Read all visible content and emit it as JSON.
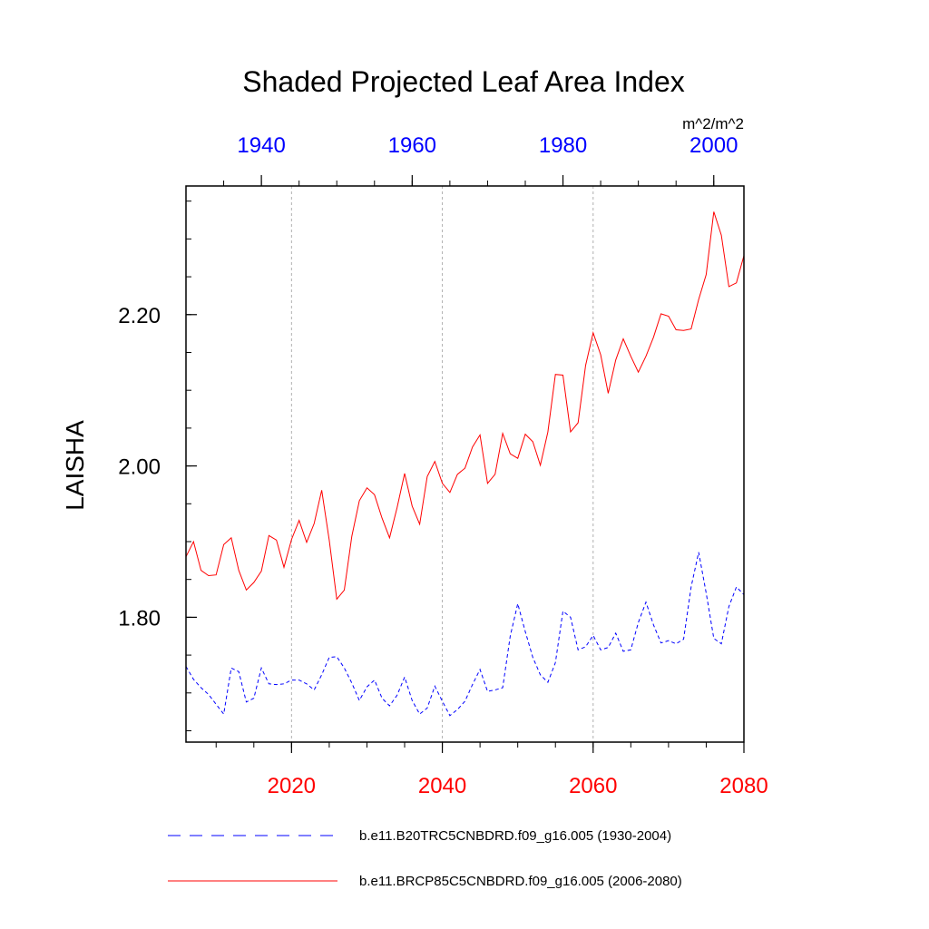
{
  "chart_data": {
    "type": "line",
    "title": "Shaded Projected Leaf Area Index",
    "units": "m^2/m^2",
    "ylabel": "LAISHA",
    "ylim": [
      1.635,
      2.37
    ],
    "yticks": [
      1.8,
      2.0,
      2.2
    ],
    "ytick_labels": [
      "1.80",
      "2.00",
      "2.20"
    ],
    "grid": "dotted vertical lines at major bottom-axis ticks",
    "bottom_axis": {
      "color": "#ff0000",
      "range": [
        2006,
        2080
      ],
      "ticks": [
        2020,
        2040,
        2060,
        2080
      ],
      "tick_labels": [
        "2020",
        "2040",
        "2060",
        "2080"
      ]
    },
    "top_axis": {
      "color": "#0000ff",
      "range": [
        1930,
        2004
      ],
      "ticks": [
        1940,
        1960,
        1980,
        2000
      ],
      "tick_labels": [
        "1940",
        "1960",
        "1980",
        "2000"
      ]
    },
    "series": [
      {
        "name": "b.e11.B20TRC5CNBDRD.f09_g16.005 (1930-2004)",
        "color": "#0000ff",
        "style": "dashed",
        "x": [
          1930,
          1931,
          1932,
          1933,
          1934,
          1935,
          1936,
          1937,
          1938,
          1939,
          1940,
          1941,
          1942,
          1943,
          1944,
          1945,
          1946,
          1947,
          1948,
          1949,
          1950,
          1951,
          1952,
          1953,
          1954,
          1955,
          1956,
          1957,
          1958,
          1959,
          1960,
          1961,
          1962,
          1963,
          1964,
          1965,
          1966,
          1967,
          1968,
          1969,
          1970,
          1971,
          1972,
          1973,
          1974,
          1975,
          1976,
          1977,
          1978,
          1979,
          1980,
          1981,
          1982,
          1983,
          1984,
          1985,
          1986,
          1987,
          1988,
          1989,
          1990,
          1991,
          1992,
          1993,
          1994,
          1995,
          1996,
          1997,
          1998,
          1999,
          2000,
          2001,
          2002,
          2003,
          2004
        ],
        "values": [
          1.735,
          1.718,
          1.707,
          1.698,
          1.685,
          1.672,
          1.733,
          1.728,
          1.688,
          1.693,
          1.733,
          1.712,
          1.711,
          1.712,
          1.717,
          1.717,
          1.712,
          1.704,
          1.724,
          1.747,
          1.748,
          1.733,
          1.713,
          1.69,
          1.708,
          1.717,
          1.693,
          1.683,
          1.697,
          1.721,
          1.69,
          1.672,
          1.68,
          1.709,
          1.689,
          1.67,
          1.678,
          1.689,
          1.711,
          1.731,
          1.702,
          1.704,
          1.707,
          1.775,
          1.818,
          1.781,
          1.747,
          1.724,
          1.714,
          1.74,
          1.808,
          1.8,
          1.757,
          1.761,
          1.776,
          1.757,
          1.76,
          1.779,
          1.755,
          1.757,
          1.793,
          1.82,
          1.79,
          1.766,
          1.769,
          1.765,
          1.771,
          1.84,
          1.886,
          1.832,
          1.772,
          1.765,
          1.814,
          1.84,
          1.83
        ]
      },
      {
        "name": "b.e11.BRCP85C5CNBDRD.f09_g16.005 (2006-2080)",
        "color": "#ff0000",
        "style": "solid",
        "x": [
          2006,
          2007,
          2008,
          2009,
          2010,
          2011,
          2012,
          2013,
          2014,
          2015,
          2016,
          2017,
          2018,
          2019,
          2020,
          2021,
          2022,
          2023,
          2024,
          2025,
          2026,
          2027,
          2028,
          2029,
          2030,
          2031,
          2032,
          2033,
          2034,
          2035,
          2036,
          2037,
          2038,
          2039,
          2040,
          2041,
          2042,
          2043,
          2044,
          2045,
          2046,
          2047,
          2048,
          2049,
          2050,
          2051,
          2052,
          2053,
          2054,
          2055,
          2056,
          2057,
          2058,
          2059,
          2060,
          2061,
          2062,
          2063,
          2064,
          2065,
          2066,
          2067,
          2068,
          2069,
          2070,
          2071,
          2072,
          2073,
          2074,
          2075,
          2076,
          2077,
          2078,
          2079,
          2080
        ],
        "values": [
          1.88,
          1.9,
          1.862,
          1.855,
          1.856,
          1.896,
          1.905,
          1.862,
          1.836,
          1.846,
          1.861,
          1.908,
          1.902,
          1.866,
          1.903,
          1.928,
          1.899,
          1.924,
          1.968,
          1.902,
          1.824,
          1.836,
          1.907,
          1.954,
          1.971,
          1.962,
          1.931,
          1.905,
          1.945,
          1.99,
          1.947,
          1.923,
          1.986,
          2.006,
          1.977,
          1.965,
          1.989,
          1.997,
          2.025,
          2.041,
          1.977,
          1.989,
          2.043,
          2.016,
          2.01,
          2.042,
          2.032,
          2.001,
          2.045,
          2.121,
          2.12,
          2.045,
          2.057,
          2.133,
          2.176,
          2.147,
          2.096,
          2.14,
          2.168,
          2.145,
          2.124,
          2.145,
          2.17,
          2.201,
          2.198,
          2.18,
          2.179,
          2.181,
          2.22,
          2.253,
          2.336,
          2.305,
          2.237,
          2.242,
          2.278
        ]
      }
    ],
    "legend": {
      "position": "bottom",
      "entries": [
        {
          "label": "b.e11.B20TRC5CNBDRD.f09_g16.005 (1930-2004)",
          "color": "#0000ff",
          "style": "dashed"
        },
        {
          "label": "b.e11.BRCP85C5CNBDRD.f09_g16.005 (2006-2080)",
          "color": "#ff0000",
          "style": "solid"
        }
      ]
    }
  }
}
